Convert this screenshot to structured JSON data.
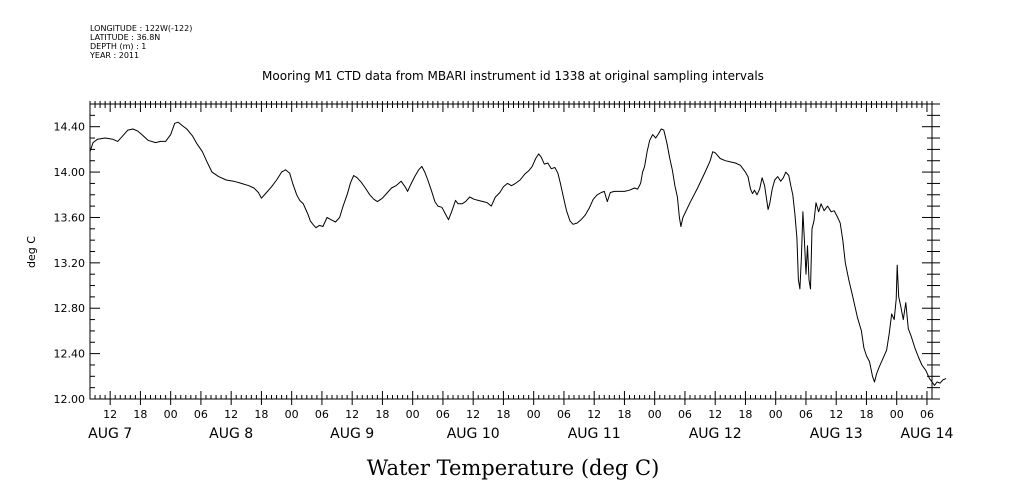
{
  "metadata": {
    "longitude": "LONGITUDE : 122W(-122)",
    "latitude": "LATITUDE : 36.8N",
    "depth": "DEPTH (m) : 1",
    "year": "YEAR : 2011"
  },
  "chart_data": {
    "type": "line",
    "title": "Mooring M1 CTD data from MBARI instrument id 1338 at original sampling intervals",
    "xlabel": "Water Temperature (deg C)",
    "ylabel": "deg C",
    "ylim": [
      12.0,
      14.6
    ],
    "yticks": [
      12.0,
      12.4,
      12.8,
      13.2,
      13.6,
      14.0,
      14.4
    ],
    "ytick_labels": [
      "12.00",
      "12.40",
      "12.80",
      "13.20",
      "13.60",
      "14.00",
      "14.40"
    ],
    "x_units": "hours from Aug 7 00:00, 2011",
    "xlim": [
      8,
      175
    ],
    "hour_ticks": [
      {
        "x": 12,
        "label": "12"
      },
      {
        "x": 18,
        "label": "18"
      },
      {
        "x": 24,
        "label": "00"
      },
      {
        "x": 30,
        "label": "06"
      },
      {
        "x": 36,
        "label": "12"
      },
      {
        "x": 42,
        "label": "18"
      },
      {
        "x": 48,
        "label": "00"
      },
      {
        "x": 54,
        "label": "06"
      },
      {
        "x": 60,
        "label": "12"
      },
      {
        "x": 66,
        "label": "18"
      },
      {
        "x": 72,
        "label": "00"
      },
      {
        "x": 78,
        "label": "06"
      },
      {
        "x": 84,
        "label": "12"
      },
      {
        "x": 90,
        "label": "18"
      },
      {
        "x": 96,
        "label": "00"
      },
      {
        "x": 102,
        "label": "06"
      },
      {
        "x": 108,
        "label": "12"
      },
      {
        "x": 114,
        "label": "18"
      },
      {
        "x": 120,
        "label": "00"
      },
      {
        "x": 126,
        "label": "06"
      },
      {
        "x": 132,
        "label": "12"
      },
      {
        "x": 138,
        "label": "18"
      },
      {
        "x": 144,
        "label": "00"
      },
      {
        "x": 150,
        "label": "06"
      },
      {
        "x": 156,
        "label": "12"
      },
      {
        "x": 162,
        "label": "18"
      },
      {
        "x": 168,
        "label": "00"
      },
      {
        "x": 174,
        "label": "06"
      }
    ],
    "date_labels": [
      {
        "x": 12,
        "label": "AUG  7"
      },
      {
        "x": 36,
        "label": "AUG  8"
      },
      {
        "x": 60,
        "label": "AUG  9"
      },
      {
        "x": 84,
        "label": "AUG 10"
      },
      {
        "x": 108,
        "label": "AUG 11"
      },
      {
        "x": 132,
        "label": "AUG 12"
      },
      {
        "x": 156,
        "label": "AUG 13"
      },
      {
        "x": 174,
        "label": "AUG 14"
      }
    ],
    "grid": false,
    "series": [
      {
        "color": "#000000",
        "points": [
          [
            8.0,
            14.18
          ],
          [
            8.6,
            14.26
          ],
          [
            9.5,
            14.29
          ],
          [
            11,
            14.3
          ],
          [
            12.5,
            14.29
          ],
          [
            13.5,
            14.27
          ],
          [
            14.5,
            14.32
          ],
          [
            15.5,
            14.37
          ],
          [
            16.5,
            14.38
          ],
          [
            17.5,
            14.36
          ],
          [
            18.3,
            14.33
          ],
          [
            19.5,
            14.28
          ],
          [
            21,
            14.26
          ],
          [
            22,
            14.27
          ],
          [
            23,
            14.27
          ],
          [
            24,
            14.33
          ],
          [
            24.8,
            14.43
          ],
          [
            25.5,
            14.44
          ],
          [
            26.3,
            14.41
          ],
          [
            27.2,
            14.38
          ],
          [
            28.3,
            14.32
          ],
          [
            29.2,
            14.25
          ],
          [
            30.3,
            14.18
          ],
          [
            31.2,
            14.09
          ],
          [
            32.2,
            14.0
          ],
          [
            33.5,
            13.96
          ],
          [
            35,
            13.93
          ],
          [
            36.5,
            13.92
          ],
          [
            38,
            13.9
          ],
          [
            39.5,
            13.88
          ],
          [
            40.5,
            13.86
          ],
          [
            41.4,
            13.82
          ],
          [
            42,
            13.77
          ],
          [
            43,
            13.82
          ],
          [
            44,
            13.87
          ],
          [
            45,
            13.93
          ],
          [
            46,
            14.0
          ],
          [
            46.8,
            14.02
          ],
          [
            47.6,
            13.99
          ],
          [
            48.2,
            13.9
          ],
          [
            49,
            13.8
          ],
          [
            49.6,
            13.75
          ],
          [
            50.3,
            13.72
          ],
          [
            50.8,
            13.67
          ],
          [
            51.3,
            13.62
          ],
          [
            51.7,
            13.57
          ],
          [
            52.2,
            13.54
          ],
          [
            52.8,
            13.51
          ],
          [
            53.5,
            13.53
          ],
          [
            54.2,
            13.52
          ],
          [
            55,
            13.6
          ],
          [
            55.8,
            13.58
          ],
          [
            56.7,
            13.56
          ],
          [
            57.5,
            13.6
          ],
          [
            58.2,
            13.7
          ],
          [
            59,
            13.8
          ],
          [
            59.7,
            13.91
          ],
          [
            60.3,
            13.97
          ],
          [
            61,
            13.95
          ],
          [
            61.8,
            13.91
          ],
          [
            62.6,
            13.86
          ],
          [
            63.5,
            13.8
          ],
          [
            64.3,
            13.76
          ],
          [
            65,
            13.74
          ],
          [
            66,
            13.77
          ],
          [
            67,
            13.82
          ],
          [
            67.8,
            13.86
          ],
          [
            68.7,
            13.88
          ],
          [
            69.7,
            13.92
          ],
          [
            70.5,
            13.87
          ],
          [
            71,
            13.83
          ],
          [
            71.6,
            13.89
          ],
          [
            72.4,
            13.96
          ],
          [
            73.2,
            14.02
          ],
          [
            73.8,
            14.05
          ],
          [
            74.4,
            14.0
          ],
          [
            75,
            13.93
          ],
          [
            75.7,
            13.84
          ],
          [
            76.4,
            13.74
          ],
          [
            77,
            13.7
          ],
          [
            77.8,
            13.69
          ],
          [
            78.5,
            13.63
          ],
          [
            79.1,
            13.58
          ],
          [
            79.8,
            13.66
          ],
          [
            80.5,
            13.75
          ],
          [
            81,
            13.72
          ],
          [
            81.8,
            13.72
          ],
          [
            82.5,
            13.74
          ],
          [
            83.3,
            13.78
          ],
          [
            84.2,
            13.76
          ],
          [
            85,
            13.75
          ],
          [
            86,
            13.74
          ],
          [
            86.8,
            13.73
          ],
          [
            87.6,
            13.7
          ],
          [
            88.4,
            13.78
          ],
          [
            89.3,
            13.82
          ],
          [
            90,
            13.87
          ],
          [
            90.8,
            13.9
          ],
          [
            91.6,
            13.88
          ],
          [
            92.4,
            13.9
          ],
          [
            93.3,
            13.93
          ],
          [
            94.2,
            13.98
          ],
          [
            95,
            14.01
          ],
          [
            95.7,
            14.05
          ],
          [
            96.4,
            14.12
          ],
          [
            97,
            14.16
          ],
          [
            97.5,
            14.13
          ],
          [
            98.1,
            14.07
          ],
          [
            98.8,
            14.08
          ],
          [
            99.5,
            14.03
          ],
          [
            100.2,
            14.04
          ],
          [
            100.8,
            13.99
          ],
          [
            101.3,
            13.9
          ],
          [
            101.9,
            13.78
          ],
          [
            102.5,
            13.66
          ],
          [
            103.2,
            13.57
          ],
          [
            103.8,
            13.54
          ],
          [
            104.6,
            13.55
          ],
          [
            105.4,
            13.58
          ],
          [
            106.2,
            13.62
          ],
          [
            107,
            13.68
          ],
          [
            107.8,
            13.76
          ],
          [
            108.6,
            13.8
          ],
          [
            109.4,
            13.82
          ],
          [
            110,
            13.83
          ],
          [
            110.6,
            13.74
          ],
          [
            111.2,
            13.82
          ],
          [
            112,
            13.83
          ],
          [
            113,
            13.83
          ],
          [
            114,
            13.83
          ],
          [
            115,
            13.84
          ],
          [
            116,
            13.86
          ],
          [
            116.6,
            13.85
          ],
          [
            117.2,
            13.9
          ],
          [
            117.6,
            14.0
          ],
          [
            118,
            14.05
          ],
          [
            118.5,
            14.18
          ],
          [
            119,
            14.28
          ],
          [
            119.6,
            14.33
          ],
          [
            120.2,
            14.3
          ],
          [
            120.8,
            14.34
          ],
          [
            121.3,
            14.38
          ],
          [
            121.8,
            14.37
          ],
          [
            122.4,
            14.26
          ],
          [
            123,
            14.12
          ],
          [
            123.5,
            14.02
          ],
          [
            124,
            13.88
          ],
          [
            124.5,
            13.78
          ],
          [
            124.9,
            13.6
          ],
          [
            125.2,
            13.52
          ],
          [
            125.6,
            13.6
          ],
          [
            127,
            13.73
          ],
          [
            128.5,
            13.86
          ],
          [
            130,
            14.0
          ],
          [
            131,
            14.1
          ],
          [
            131.5,
            14.18
          ],
          [
            132,
            14.17
          ],
          [
            133,
            14.12
          ],
          [
            134,
            14.1
          ],
          [
            135,
            14.09
          ],
          [
            136,
            14.08
          ],
          [
            137,
            14.06
          ],
          [
            138,
            14.0
          ],
          [
            138.5,
            13.96
          ],
          [
            139,
            13.85
          ],
          [
            139.4,
            13.81
          ],
          [
            139.8,
            13.84
          ],
          [
            140.3,
            13.8
          ],
          [
            140.8,
            13.85
          ],
          [
            141.3,
            13.95
          ],
          [
            141.8,
            13.88
          ],
          [
            142.2,
            13.76
          ],
          [
            142.5,
            13.67
          ],
          [
            142.8,
            13.72
          ],
          [
            143.3,
            13.85
          ],
          [
            143.8,
            13.93
          ],
          [
            144.4,
            13.96
          ],
          [
            145,
            13.92
          ],
          [
            145.5,
            13.95
          ],
          [
            146,
            14.0
          ],
          [
            146.6,
            13.97
          ],
          [
            147,
            13.88
          ],
          [
            147.4,
            13.8
          ],
          [
            147.8,
            13.63
          ],
          [
            148.2,
            13.42
          ],
          [
            148.5,
            13.05
          ],
          [
            148.8,
            12.97
          ],
          [
            149.1,
            13.25
          ],
          [
            149.4,
            13.65
          ],
          [
            149.7,
            13.4
          ],
          [
            150,
            13.1
          ],
          [
            150.3,
            13.35
          ],
          [
            150.6,
            13.05
          ],
          [
            150.9,
            12.97
          ],
          [
            151.2,
            13.5
          ],
          [
            151.6,
            13.57
          ],
          [
            152,
            13.73
          ],
          [
            152.5,
            13.65
          ],
          [
            153,
            13.72
          ],
          [
            153.6,
            13.66
          ],
          [
            154.3,
            13.7
          ],
          [
            155,
            13.65
          ],
          [
            155.6,
            13.66
          ],
          [
            156.3,
            13.6
          ],
          [
            156.8,
            13.55
          ],
          [
            157.3,
            13.4
          ],
          [
            157.8,
            13.2
          ],
          [
            158.5,
            13.05
          ],
          [
            159.3,
            12.9
          ],
          [
            160.2,
            12.72
          ],
          [
            161,
            12.6
          ],
          [
            161.5,
            12.45
          ],
          [
            162,
            12.38
          ],
          [
            162.6,
            12.33
          ],
          [
            163.2,
            12.2
          ],
          [
            163.6,
            12.15
          ],
          [
            164,
            12.22
          ],
          [
            164.5,
            12.28
          ],
          [
            165.2,
            12.35
          ],
          [
            166,
            12.43
          ],
          [
            166.5,
            12.57
          ],
          [
            167,
            12.75
          ],
          [
            167.5,
            12.7
          ],
          [
            167.9,
            12.88
          ],
          [
            168.1,
            13.18
          ],
          [
            168.4,
            12.9
          ],
          [
            168.8,
            12.82
          ],
          [
            169.3,
            12.7
          ],
          [
            169.8,
            12.85
          ],
          [
            170.3,
            12.62
          ],
          [
            170.9,
            12.55
          ],
          [
            171.6,
            12.45
          ],
          [
            172.3,
            12.37
          ],
          [
            173,
            12.3
          ],
          [
            173.8,
            12.25
          ],
          [
            174.5,
            12.18
          ],
          [
            175,
            12.15
          ],
          [
            175.5,
            12.12
          ],
          [
            176,
            12.15
          ],
          [
            176.6,
            12.14
          ],
          [
            177.2,
            12.17
          ],
          [
            177.8,
            12.18
          ]
        ]
      }
    ]
  }
}
